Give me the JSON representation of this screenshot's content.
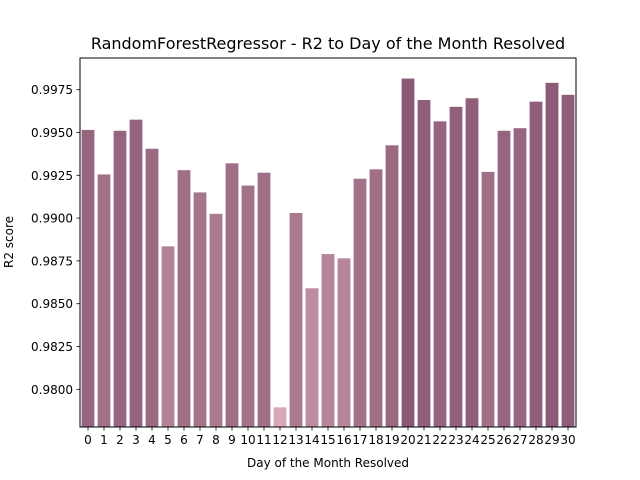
{
  "chart_data": {
    "type": "bar",
    "title": "RandomForestRegressor - R2 to Day of the Month Resolved",
    "xlabel": "Day of the Month Resolved",
    "ylabel": "R2 score",
    "categories": [
      "0",
      "1",
      "2",
      "3",
      "4",
      "5",
      "6",
      "7",
      "8",
      "9",
      "10",
      "11",
      "12",
      "13",
      "14",
      "15",
      "16",
      "17",
      "18",
      "19",
      "20",
      "21",
      "22",
      "23",
      "24",
      "25",
      "26",
      "27",
      "28",
      "29",
      "30"
    ],
    "values": [
      0.99515,
      0.99255,
      0.9951,
      0.99575,
      0.99405,
      0.98835,
      0.9928,
      0.9915,
      0.99025,
      0.9932,
      0.9919,
      0.99265,
      0.97895,
      0.9903,
      0.9859,
      0.9879,
      0.98765,
      0.9923,
      0.99285,
      0.99425,
      0.99815,
      0.9969,
      0.99565,
      0.9965,
      0.997,
      0.9927,
      0.9951,
      0.99525,
      0.9968,
      0.9979,
      0.9972
    ],
    "ylim": [
      0.9778,
      0.99935
    ],
    "yticks": [
      "0.9800",
      "0.9825",
      "0.9850",
      "0.9875",
      "0.9900",
      "0.9925",
      "0.9950",
      "0.9975"
    ],
    "ytick_values": [
      0.98,
      0.9825,
      0.985,
      0.9875,
      0.99,
      0.9925,
      0.995,
      0.9975
    ],
    "grid": false,
    "colors": {
      "low": "#d8a8b8",
      "high": "#8a5a76",
      "axis": "#000000"
    }
  }
}
